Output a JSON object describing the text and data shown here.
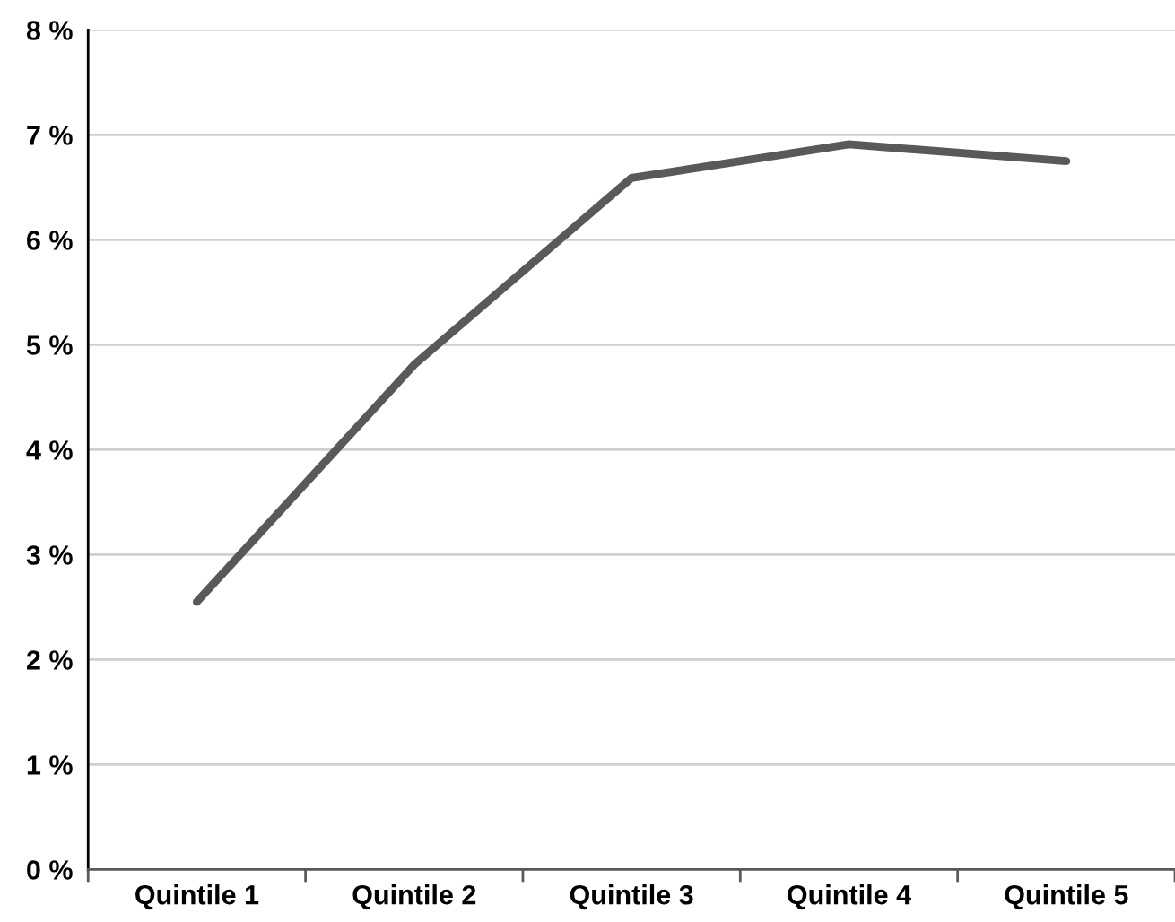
{
  "chart_data": {
    "type": "line",
    "categories": [
      "Quintile 1",
      "Quintile 2",
      "Quintile 3",
      "Quintile 4",
      "Quintile 5"
    ],
    "series": [
      {
        "color": "#595959",
        "values": [
          2.55,
          4.81,
          6.59,
          6.91,
          6.75
        ]
      }
    ],
    "ylim": [
      0,
      8
    ],
    "yticks": [
      {
        "value": 0,
        "label": "0 %"
      },
      {
        "value": 1,
        "label": "1 %"
      },
      {
        "value": 2,
        "label": "2 %"
      },
      {
        "value": 3,
        "label": "3 %"
      },
      {
        "value": 4,
        "label": "4 %"
      },
      {
        "value": 5,
        "label": "5 %"
      },
      {
        "value": 6,
        "label": "6 %"
      },
      {
        "value": 7,
        "label": "7 %"
      },
      {
        "value": 8,
        "label": "8 %"
      }
    ],
    "grid": "y",
    "marker": "none",
    "line_style": "solid"
  }
}
